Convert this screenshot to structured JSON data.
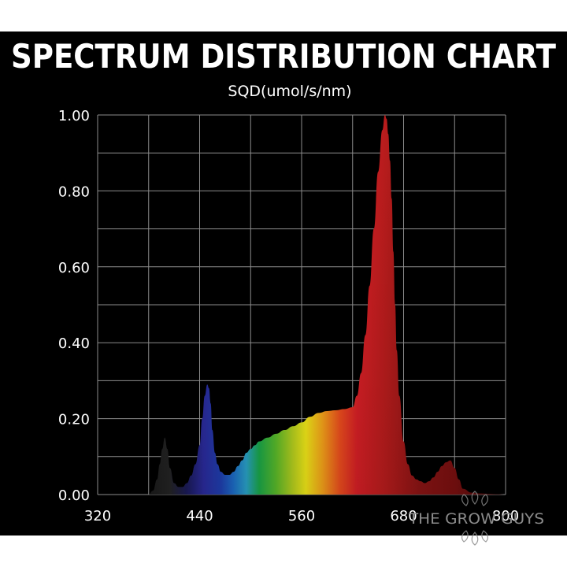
{
  "chart_data": {
    "type": "area",
    "title": "SPECTRUM DISTRIBUTION CHART",
    "ylabel": "SQD(umol/s/nm)",
    "xlabel": "",
    "xlim": [
      320,
      800
    ],
    "ylim": [
      0,
      1.0
    ],
    "x_ticks": [
      "320",
      "440",
      "560",
      "680",
      "800"
    ],
    "y_ticks": [
      "0.00",
      "0.20",
      "0.40",
      "0.60",
      "0.80",
      "1.00"
    ],
    "grid": true,
    "series": [
      {
        "x": [
          380,
          385,
          390,
          393,
          396,
          399,
          402,
          405,
          410,
          415,
          420,
          425,
          430,
          435,
          440,
          443,
          446,
          449,
          451,
          453,
          455,
          458,
          461,
          465,
          470,
          475,
          480,
          485,
          490,
          495,
          500,
          505,
          510,
          520,
          530,
          540,
          550,
          560,
          570,
          580,
          590,
          600,
          610,
          620,
          625,
          630,
          635,
          640,
          645,
          650,
          655,
          658,
          660,
          662,
          664,
          666,
          668,
          670,
          672,
          675,
          680,
          685,
          690,
          695,
          700,
          705,
          710,
          715,
          720,
          725,
          730,
          735,
          740,
          745,
          750,
          760,
          770,
          780,
          790,
          800
        ],
        "y": [
          0.0,
          0.01,
          0.04,
          0.08,
          0.12,
          0.15,
          0.12,
          0.07,
          0.03,
          0.02,
          0.02,
          0.03,
          0.05,
          0.08,
          0.13,
          0.2,
          0.26,
          0.29,
          0.28,
          0.24,
          0.17,
          0.11,
          0.08,
          0.06,
          0.052,
          0.052,
          0.06,
          0.075,
          0.09,
          0.11,
          0.12,
          0.13,
          0.14,
          0.15,
          0.16,
          0.17,
          0.18,
          0.19,
          0.205,
          0.215,
          0.22,
          0.222,
          0.225,
          0.23,
          0.26,
          0.32,
          0.42,
          0.55,
          0.7,
          0.85,
          0.96,
          1.0,
          0.99,
          0.95,
          0.88,
          0.78,
          0.64,
          0.5,
          0.38,
          0.26,
          0.14,
          0.08,
          0.05,
          0.04,
          0.035,
          0.03,
          0.035,
          0.045,
          0.06,
          0.075,
          0.085,
          0.09,
          0.07,
          0.04,
          0.015,
          0.005,
          0.003,
          0.002,
          0.001,
          0.0
        ]
      }
    ],
    "colors": {
      "background": "#000000",
      "grid": "#8c8c8c",
      "text": "#ffffff"
    },
    "spectrum_gradient": [
      {
        "nm": 380,
        "color": "#1a1a1a"
      },
      {
        "nm": 405,
        "color": "#242424"
      },
      {
        "nm": 425,
        "color": "#1b1b5a"
      },
      {
        "nm": 445,
        "color": "#2b2b9e"
      },
      {
        "nm": 465,
        "color": "#1f3fb0"
      },
      {
        "nm": 480,
        "color": "#1d6ec8"
      },
      {
        "nm": 495,
        "color": "#2aa3c9"
      },
      {
        "nm": 510,
        "color": "#1aa84a"
      },
      {
        "nm": 530,
        "color": "#5cbc2a"
      },
      {
        "nm": 550,
        "color": "#b9d21e"
      },
      {
        "nm": 565,
        "color": "#f3ea18"
      },
      {
        "nm": 585,
        "color": "#f7a21a"
      },
      {
        "nm": 605,
        "color": "#ee4e1e"
      },
      {
        "nm": 625,
        "color": "#d81f26"
      },
      {
        "nm": 660,
        "color": "#b71c1c"
      },
      {
        "nm": 700,
        "color": "#8a1414"
      },
      {
        "nm": 740,
        "color": "#7a1010"
      },
      {
        "nm": 800,
        "color": "#3a0808"
      }
    ]
  },
  "watermark": {
    "text": "THE GROW GUYS"
  }
}
